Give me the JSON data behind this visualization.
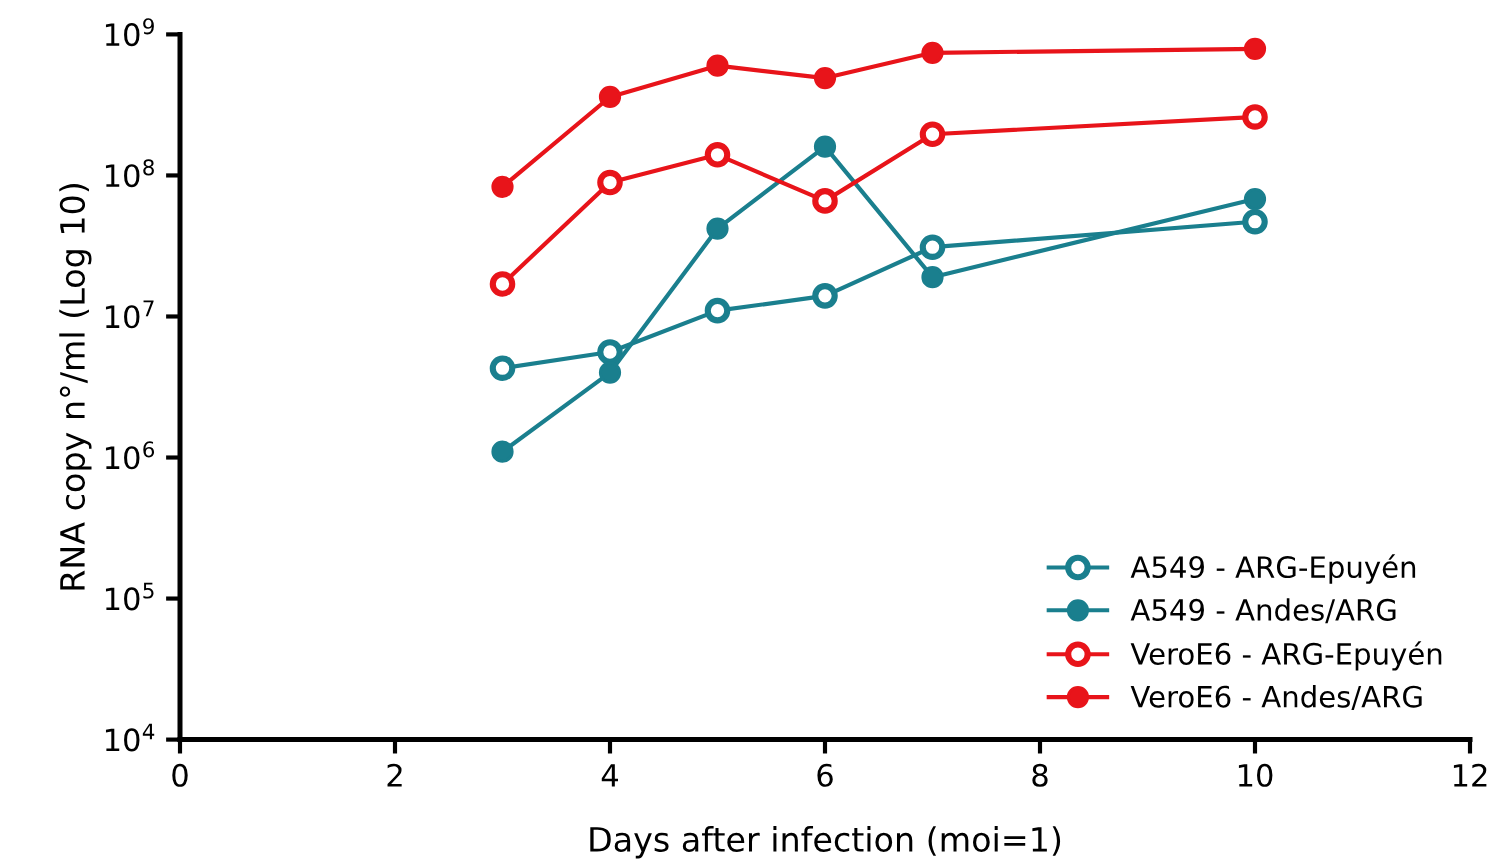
{
  "chart_data": {
    "type": "line",
    "xlabel": "Days after infection (moi=1)",
    "ylabel": "RNA copy n°/ml (Log 10)",
    "x": [
      3,
      4,
      5,
      6,
      7,
      10
    ],
    "series": [
      {
        "name": "A549 - ARG-Epuyén",
        "color": "#1a7f8e",
        "values": [
          4300000,
          5600000,
          11000000,
          14000000,
          31000000,
          47000000
        ]
      },
      {
        "name": "A549 - Andes/ARG",
        "color": "#1a7f8e",
        "values": [
          1100000,
          4000000,
          42000000,
          160000000,
          19000000,
          68000000
        ]
      },
      {
        "name": "VeroE6 - ARG-Epuyén",
        "color": "#e8141a",
        "values": [
          17000000,
          89000000,
          140000000,
          66000000,
          196000000,
          260000000
        ]
      },
      {
        "name": "VeroE6 - Andes/ARG",
        "color": "#e8141a",
        "values": [
          83000000,
          360000000,
          600000000,
          490000000,
          740000000,
          790000000
        ]
      }
    ],
    "log": "y",
    "xlim": [
      0,
      12
    ],
    "xticks": [
      0,
      2,
      4,
      6,
      8,
      10,
      12
    ],
    "ylim": [
      10000,
      1000000000
    ],
    "yticks": [
      {
        "value": 10000,
        "label": "10$^{4}$"
      },
      {
        "value": 100000,
        "label": "10$^{5}$"
      },
      {
        "value": 1000000,
        "label": "10$^{6}$"
      },
      {
        "value": 10000000,
        "label": "10$^{7}$"
      },
      {
        "value": 100000000,
        "label": "10$^{8}$"
      },
      {
        "value": 1000000000,
        "label": "10$^{9}$"
      }
    ],
    "grid": false,
    "legend": "bottom right",
    "marker": "circle",
    "line_style": "solid"
  }
}
